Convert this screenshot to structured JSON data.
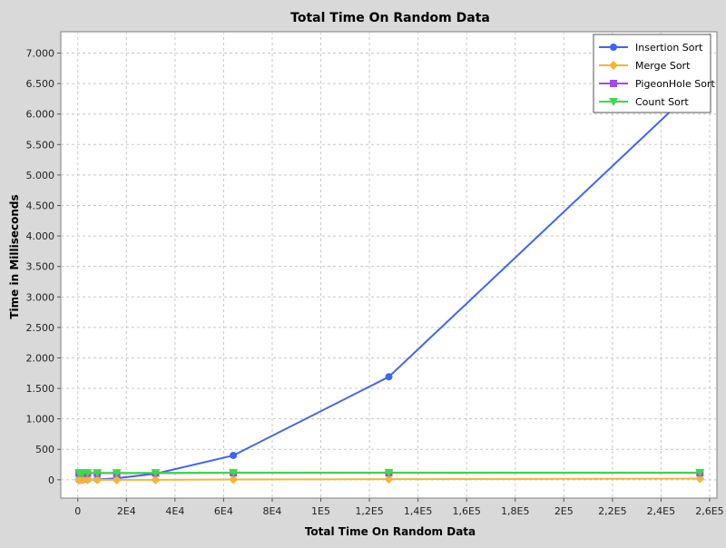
{
  "chart_data": {
    "type": "line",
    "title": "Total Time On Random Data",
    "xlabel": "Total Time On Random Data",
    "ylabel": "Time in Milliseconds",
    "xlim": [
      -7000,
      263000
    ],
    "ylim": [
      -300,
      7350
    ],
    "x_ticks": [
      {
        "v": 0,
        "label": "0"
      },
      {
        "v": 20000,
        "label": "2E4"
      },
      {
        "v": 40000,
        "label": "4E4"
      },
      {
        "v": 60000,
        "label": "6E4"
      },
      {
        "v": 80000,
        "label": "8E4"
      },
      {
        "v": 100000,
        "label": "1E5"
      },
      {
        "v": 120000,
        "label": "1,2E5"
      },
      {
        "v": 140000,
        "label": "1,4E5"
      },
      {
        "v": 160000,
        "label": "1,6E5"
      },
      {
        "v": 180000,
        "label": "1,8E5"
      },
      {
        "v": 200000,
        "label": "2E5"
      },
      {
        "v": 220000,
        "label": "2,2E5"
      },
      {
        "v": 240000,
        "label": "2,4E5"
      },
      {
        "v": 260000,
        "label": "2,6E5"
      }
    ],
    "y_ticks": [
      {
        "v": 0,
        "label": "0"
      },
      {
        "v": 500,
        "label": "500"
      },
      {
        "v": 1000,
        "label": "1.000"
      },
      {
        "v": 1500,
        "label": "1.500"
      },
      {
        "v": 2000,
        "label": "2.000"
      },
      {
        "v": 2500,
        "label": "2.500"
      },
      {
        "v": 3000,
        "label": "3.000"
      },
      {
        "v": 3500,
        "label": "3.500"
      },
      {
        "v": 4000,
        "label": "4.000"
      },
      {
        "v": 4500,
        "label": "4.500"
      },
      {
        "v": 5000,
        "label": "5.000"
      },
      {
        "v": 5500,
        "label": "5.500"
      },
      {
        "v": 6000,
        "label": "6.000"
      },
      {
        "v": 6500,
        "label": "6.500"
      },
      {
        "v": 7000,
        "label": "7.000"
      }
    ],
    "grid": true,
    "legend_position": "top-right",
    "series": [
      {
        "name": "Insertion Sort",
        "color": "#3f66f0",
        "marker": "circle",
        "x": [
          500,
          1000,
          2000,
          4000,
          8000,
          16000,
          32000,
          64000,
          128000,
          256000
        ],
        "y": [
          0,
          0,
          0,
          2,
          6,
          25,
          100,
          400,
          1690,
          6500
        ]
      },
      {
        "name": "Merge Sort",
        "color": "#f6b536",
        "marker": "diamond",
        "x": [
          500,
          1000,
          2000,
          4000,
          8000,
          16000,
          32000,
          64000,
          128000,
          256000
        ],
        "y": [
          0,
          0,
          0,
          0,
          0,
          0,
          0,
          5,
          10,
          20
        ]
      },
      {
        "name": "PigeonHole Sort",
        "color": "#a347ef",
        "marker": "square",
        "x": [
          500,
          1000,
          2000,
          4000,
          8000,
          16000,
          32000,
          64000,
          128000,
          256000
        ],
        "y": [
          110,
          110,
          110,
          110,
          110,
          110,
          110,
          115,
          115,
          115
        ]
      },
      {
        "name": "Count Sort",
        "color": "#3ed94a",
        "marker": "triangle-down",
        "x": [
          500,
          1000,
          2000,
          4000,
          8000,
          16000,
          32000,
          64000,
          128000,
          256000
        ],
        "y": [
          115,
          115,
          115,
          115,
          115,
          115,
          115,
          118,
          118,
          118
        ]
      }
    ]
  }
}
